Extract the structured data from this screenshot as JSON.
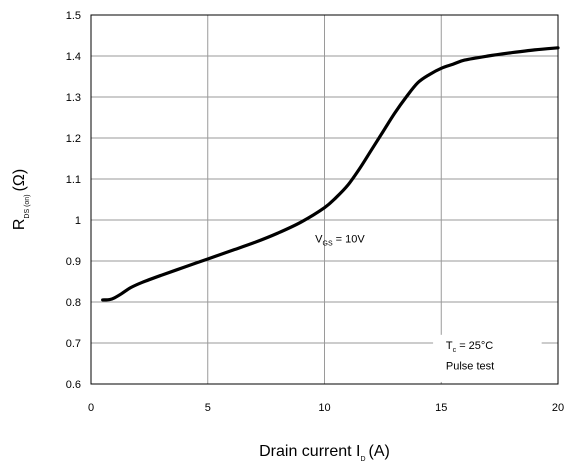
{
  "chart_data": {
    "type": "line",
    "title": "",
    "xlabel": "Drain current I",
    "xlabel_sub": "D",
    "xlabel_unit": "(A)",
    "ylabel": "R",
    "ylabel_sub": "DS (on)",
    "ylabel_unit": "(Ω)",
    "xlim": [
      0,
      20
    ],
    "ylim": [
      0.6,
      1.5
    ],
    "xticks": [
      0,
      5,
      10,
      15,
      20
    ],
    "xtick_labels": [
      "0",
      "5",
      "10",
      "15",
      "20"
    ],
    "yticks": [
      0.6,
      0.7,
      0.8,
      0.9,
      1.0,
      1.1,
      1.2,
      1.3,
      1.4,
      1.5
    ],
    "ytick_labels": [
      "0.6",
      "0.7",
      "0.8",
      "0.9",
      "1",
      "1.1",
      "1.2",
      "1.3",
      "1.4",
      "1.5"
    ],
    "grid": true,
    "series": [
      {
        "color": "#000000",
        "x": [
          0.5,
          0.8,
          1.0,
          1.3,
          1.7,
          2.2,
          3.0,
          4.0,
          5.0,
          6.0,
          7.0,
          8.0,
          9.0,
          10.0,
          10.5,
          11.0,
          11.5,
          12.0,
          12.5,
          13.0,
          13.5,
          14.0,
          14.5,
          15.0,
          15.5,
          16.0,
          17.0,
          18.0,
          19.0,
          20.0
        ],
        "y": [
          0.805,
          0.806,
          0.81,
          0.82,
          0.835,
          0.848,
          0.865,
          0.885,
          0.905,
          0.925,
          0.945,
          0.968,
          0.995,
          1.03,
          1.055,
          1.085,
          1.125,
          1.17,
          1.215,
          1.26,
          1.3,
          1.335,
          1.355,
          1.37,
          1.38,
          1.39,
          1.4,
          1.408,
          1.415,
          1.42
        ]
      }
    ],
    "annotations": [
      {
        "text": "V",
        "sub": "GS",
        "suffix": " = 10V",
        "x": 9.6,
        "y": 0.945
      },
      {
        "text": "T",
        "sub": "c",
        "suffix": " = 25°C",
        "x": 15.2,
        "y": 0.685
      },
      {
        "text": "Pulse test",
        "x": 15.2,
        "y": 0.635
      }
    ]
  }
}
